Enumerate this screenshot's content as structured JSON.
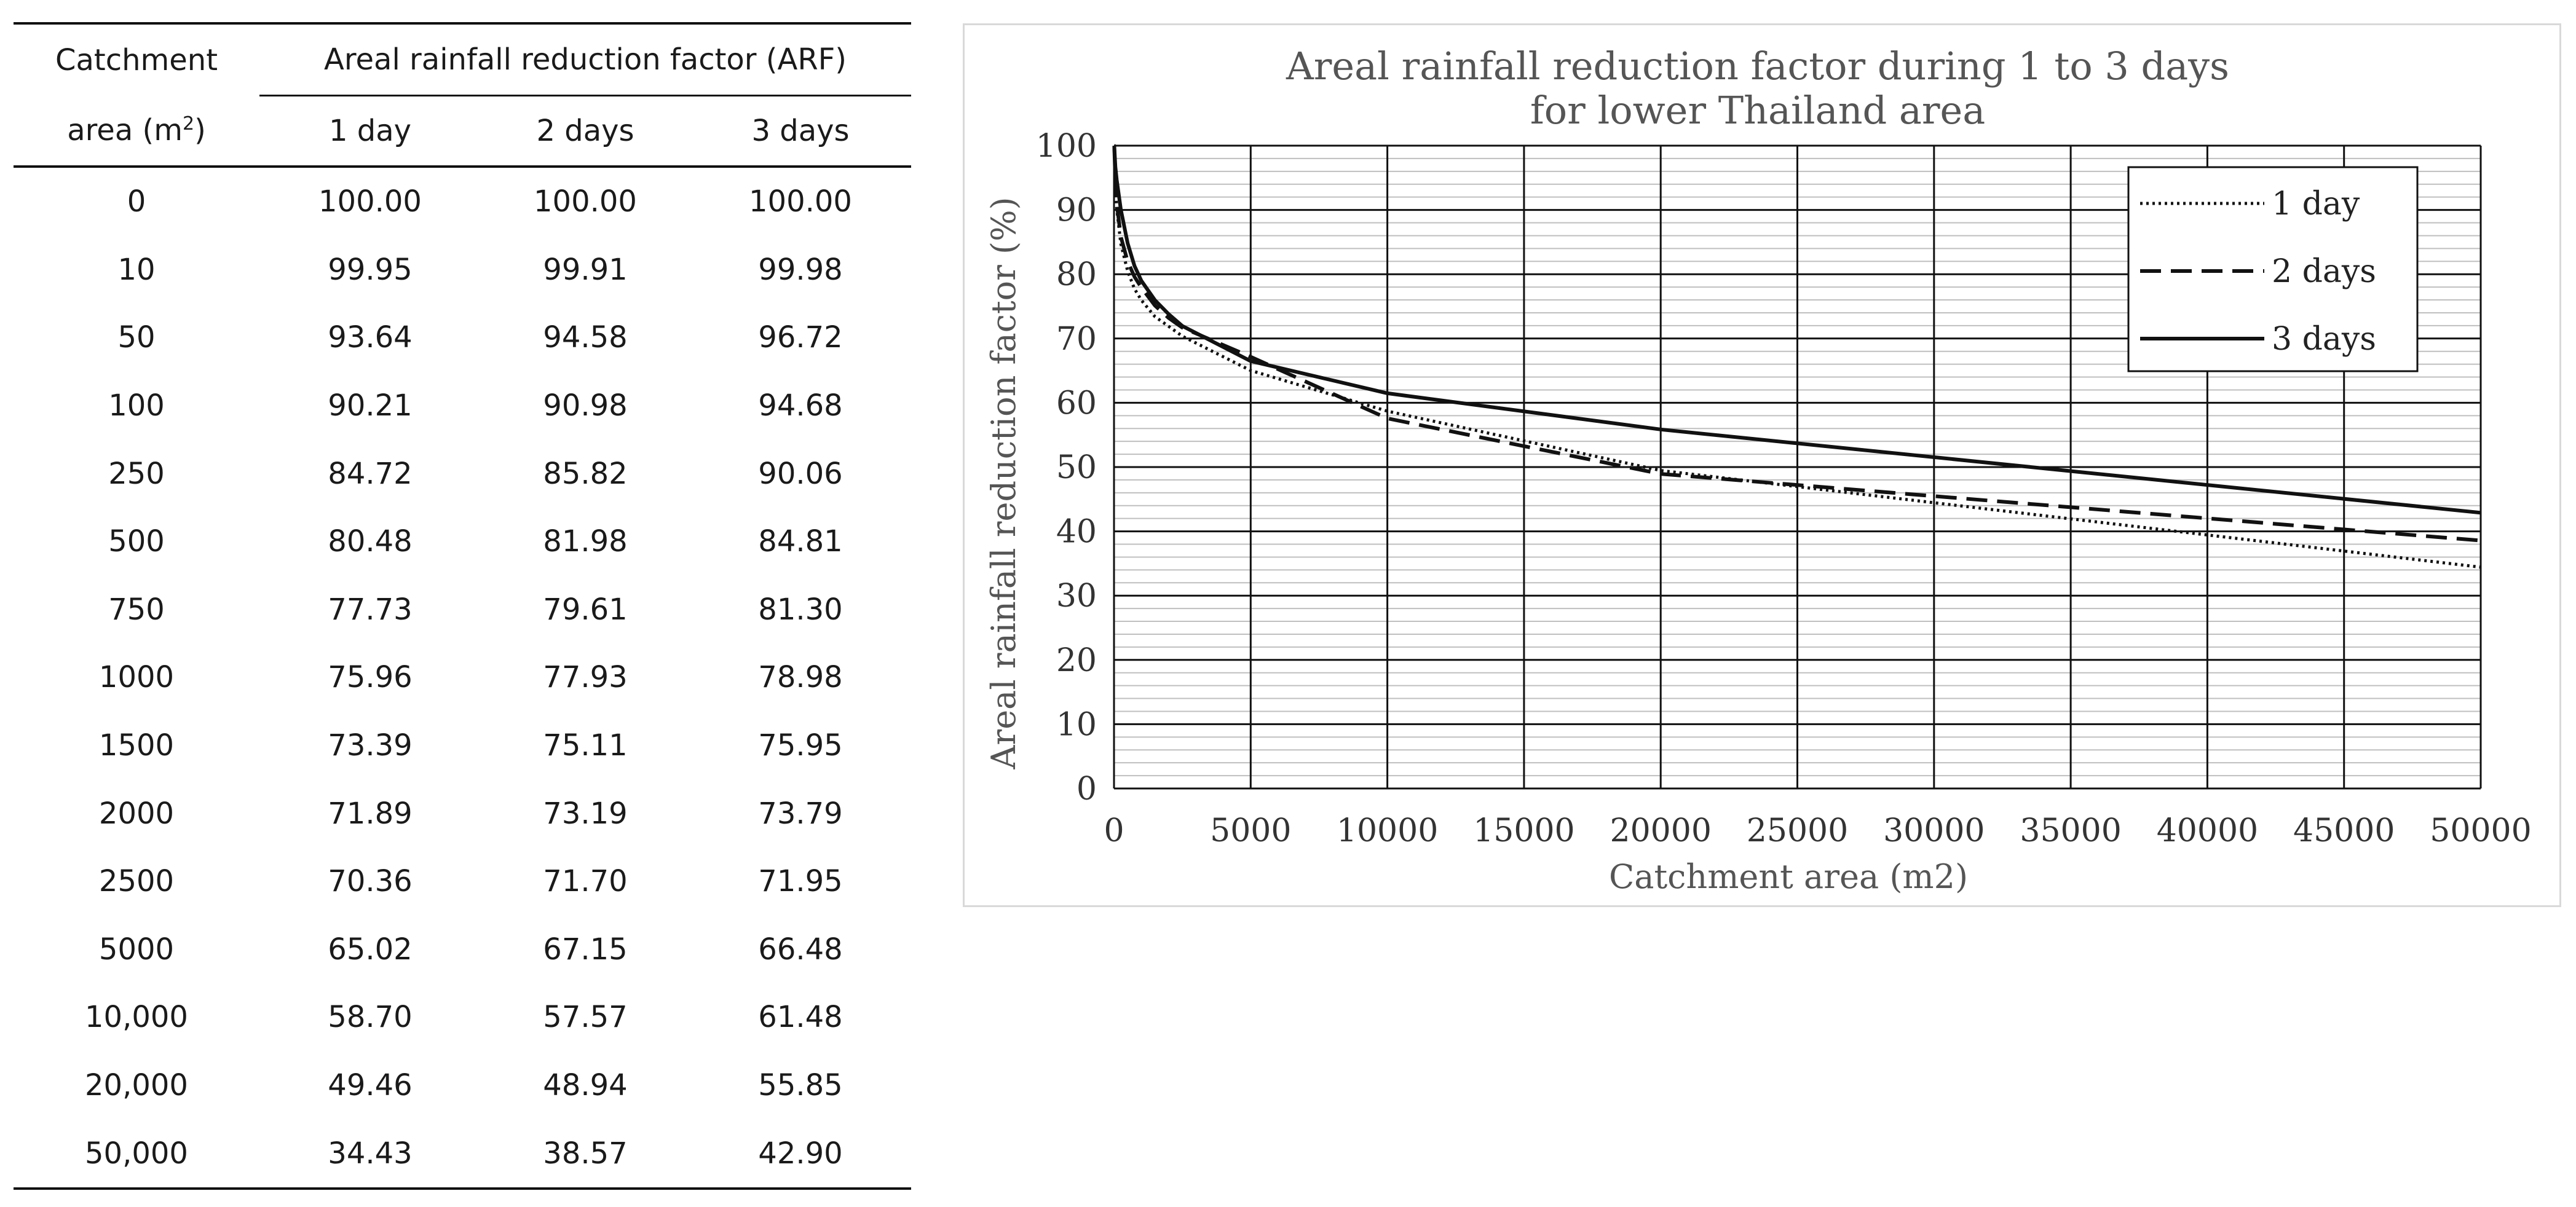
{
  "table": {
    "header_area_line1": "Catchment",
    "header_area_line2": "area (m",
    "header_area_sup": "2",
    "header_area_close": ")",
    "header_arf": "Areal rainfall reduction factor (ARF)",
    "header_d1": "1 day",
    "header_d2": "2 days",
    "header_d3": "3 days",
    "rows": [
      {
        "area": "0",
        "d1": "100.00",
        "d2": "100.00",
        "d3": "100.00"
      },
      {
        "area": "10",
        "d1": "99.95",
        "d2": "99.91",
        "d3": "99.98"
      },
      {
        "area": "50",
        "d1": "93.64",
        "d2": "94.58",
        "d3": "96.72"
      },
      {
        "area": "100",
        "d1": "90.21",
        "d2": "90.98",
        "d3": "94.68"
      },
      {
        "area": "250",
        "d1": "84.72",
        "d2": "85.82",
        "d3": "90.06"
      },
      {
        "area": "500",
        "d1": "80.48",
        "d2": "81.98",
        "d3": "84.81"
      },
      {
        "area": "750",
        "d1": "77.73",
        "d2": "79.61",
        "d3": "81.30"
      },
      {
        "area": "1000",
        "d1": "75.96",
        "d2": "77.93",
        "d3": "78.98"
      },
      {
        "area": "1500",
        "d1": "73.39",
        "d2": "75.11",
        "d3": "75.95"
      },
      {
        "area": "2000",
        "d1": "71.89",
        "d2": "73.19",
        "d3": "73.79"
      },
      {
        "area": "2500",
        "d1": "70.36",
        "d2": "71.70",
        "d3": "71.95"
      },
      {
        "area": "5000",
        "d1": "65.02",
        "d2": "67.15",
        "d3": "66.48"
      },
      {
        "area": "10,000",
        "d1": "58.70",
        "d2": "57.57",
        "d3": "61.48"
      },
      {
        "area": "20,000",
        "d1": "49.46",
        "d2": "48.94",
        "d3": "55.85"
      },
      {
        "area": "50,000",
        "d1": "34.43",
        "d2": "38.57",
        "d3": "42.90"
      }
    ]
  },
  "chart_data": {
    "type": "line",
    "title_line1": "Areal rainfall reduction factor during 1 to 3 days",
    "title_line2": "for lower Thailand area",
    "xlabel": "Catchment area (m2)",
    "ylabel": "Areal rainfall reduction factor (%)",
    "xlim": [
      0,
      50000
    ],
    "ylim": [
      0,
      100
    ],
    "x_ticks": [
      0,
      5000,
      10000,
      15000,
      20000,
      25000,
      30000,
      35000,
      40000,
      45000,
      50000
    ],
    "y_ticks": [
      0,
      10,
      20,
      30,
      40,
      50,
      60,
      70,
      80,
      90,
      100
    ],
    "grid": true,
    "legend_position": "top-right",
    "x": [
      0,
      10,
      50,
      100,
      250,
      500,
      750,
      1000,
      1500,
      2000,
      2500,
      5000,
      10000,
      20000,
      50000
    ],
    "series": [
      {
        "name": "1 day",
        "style": "dotted",
        "values": [
          100.0,
          99.95,
          93.64,
          90.21,
          84.72,
          80.48,
          77.73,
          75.96,
          73.39,
          71.89,
          70.36,
          65.02,
          58.7,
          49.46,
          34.43
        ]
      },
      {
        "name": "2 days",
        "style": "dashed",
        "values": [
          100.0,
          99.91,
          94.58,
          90.98,
          85.82,
          81.98,
          79.61,
          77.93,
          75.11,
          73.19,
          71.7,
          67.15,
          57.57,
          48.94,
          38.57
        ]
      },
      {
        "name": "3 days",
        "style": "solid",
        "values": [
          100.0,
          99.98,
          96.72,
          94.68,
          90.06,
          84.81,
          81.3,
          78.98,
          75.95,
          73.79,
          71.95,
          66.48,
          61.48,
          55.85,
          42.9
        ]
      }
    ],
    "line_color": "#111111",
    "major_grid_color": "#111111",
    "minor_grid_color": "#bfbfbf"
  }
}
